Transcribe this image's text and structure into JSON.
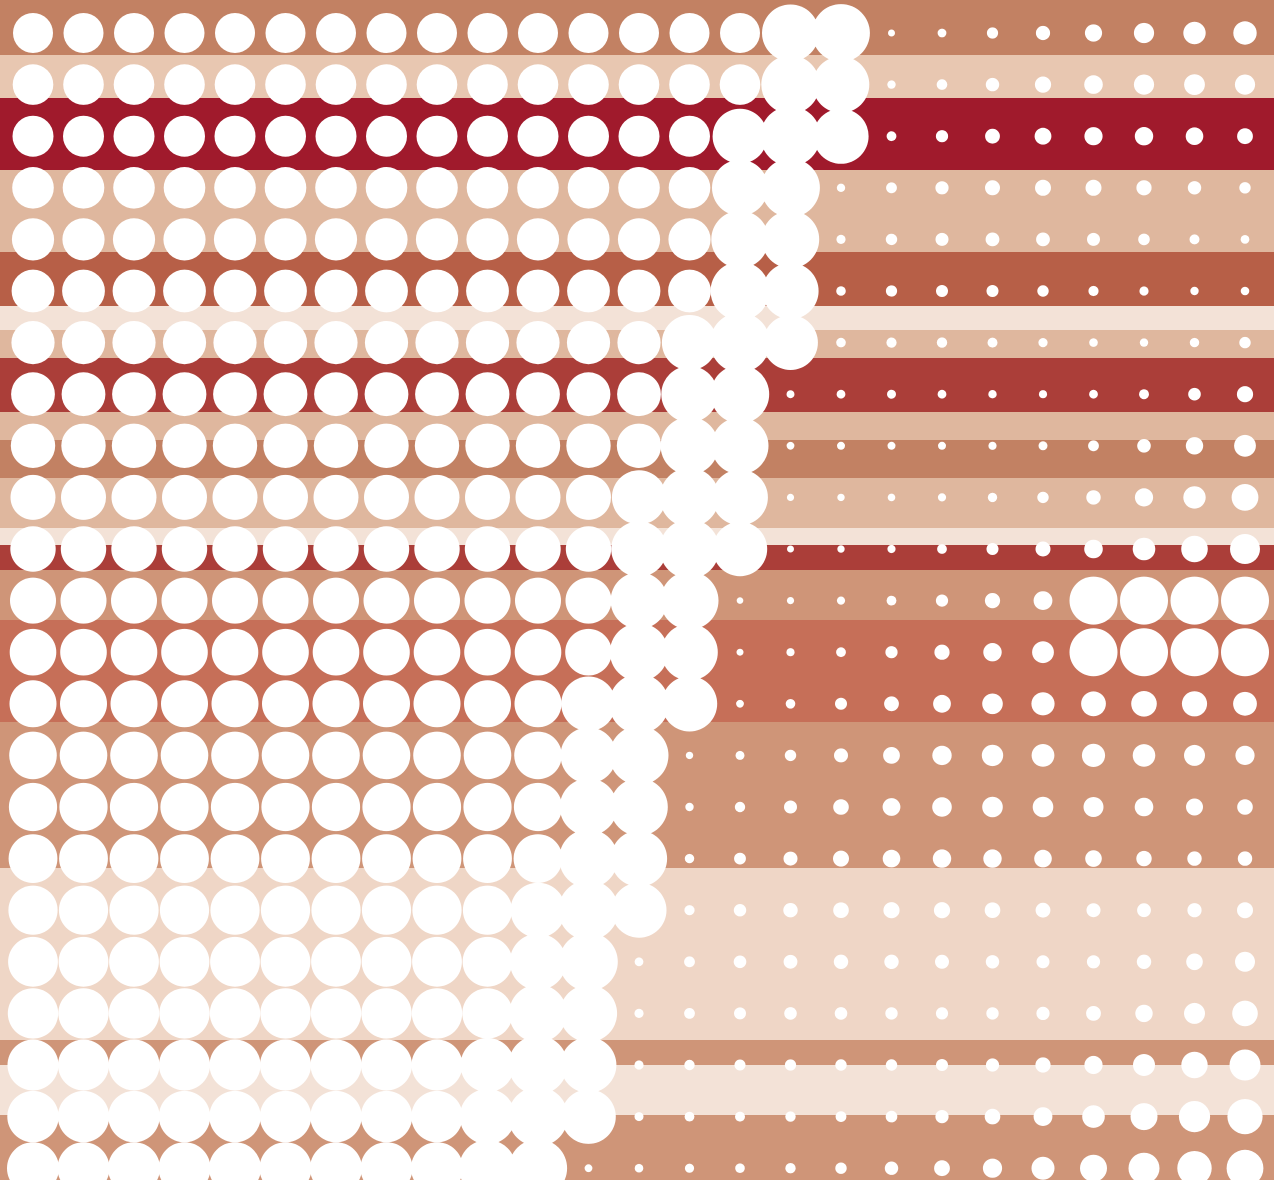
{
  "artwork": {
    "kind": "halftone dot pattern over horizontal stripes",
    "dot_color": "#ffffff",
    "stripe_colors": [
      "#c28163",
      "#e8c7b1",
      "#a01a2c",
      "#dfb79e",
      "#b75f47",
      "#f3e2d7",
      "#ab3e39",
      "#cf9578",
      "#efd6c6",
      "#c66f58"
    ],
    "text": []
  }
}
